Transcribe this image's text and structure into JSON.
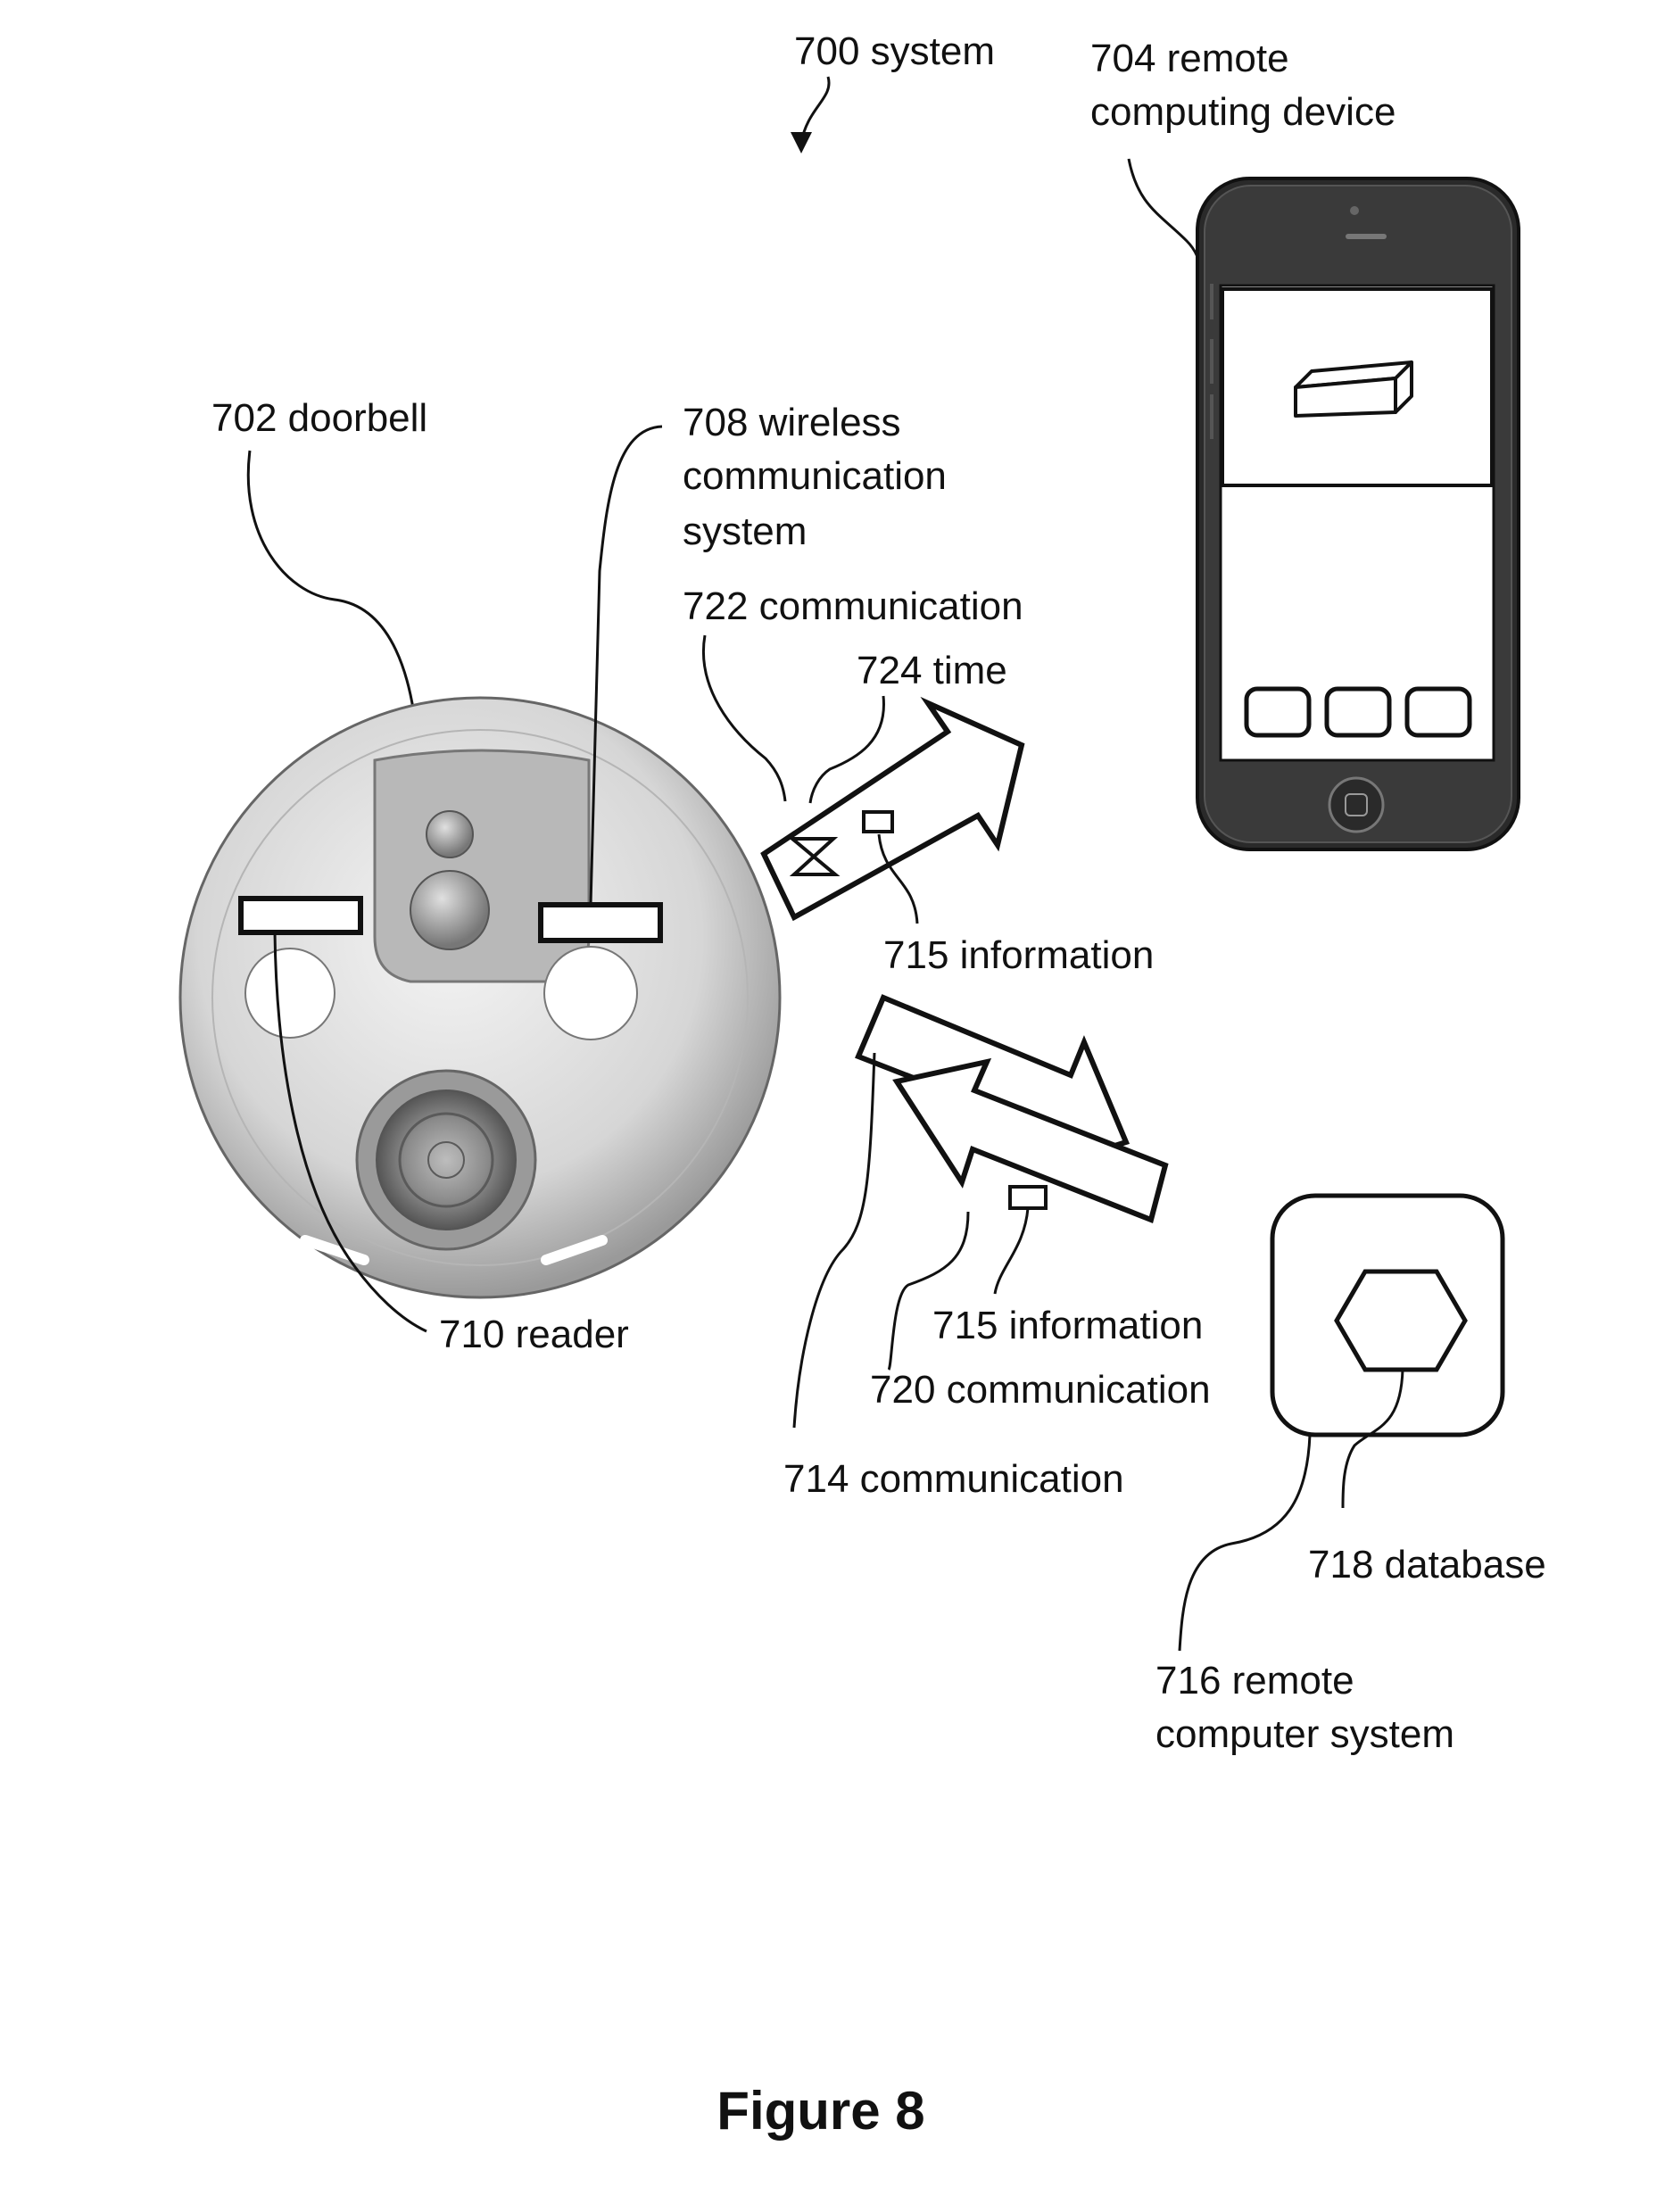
{
  "figure": {
    "title": "Figure 8",
    "labels": {
      "system": "700 system",
      "remote_device_line1": "704 remote",
      "remote_device_line2": "computing device",
      "doorbell": "702 doorbell",
      "wireless_line1": "708 wireless",
      "wireless_line2": "communication",
      "wireless_line3": "system",
      "comm_722": "722 communication",
      "time_724": "724 time",
      "info_715_a": "715 information",
      "reader_710": "710 reader",
      "info_715_b": "715 information",
      "comm_720": "720 communication",
      "comm_714": "714 communication",
      "database_718": "718 database",
      "remote_system_line1": "716 remote",
      "remote_system_line2": "computer system"
    }
  },
  "colors": {
    "ink": "#111111",
    "device_grey": "#cfcfcf",
    "phone_body": "#2a2a2a"
  }
}
